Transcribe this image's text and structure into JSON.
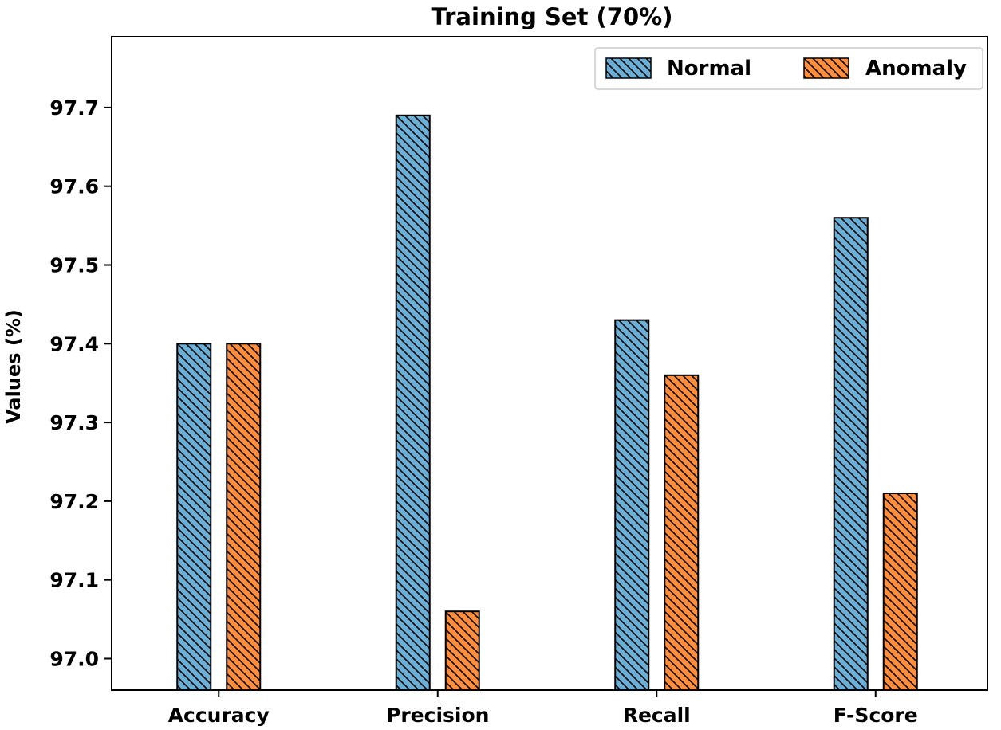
{
  "chart_data": {
    "type": "bar",
    "title": "Training Set (70%)",
    "xlabel": "",
    "ylabel": "Values (%)",
    "categories": [
      "Accuracy",
      "Precision",
      "Recall",
      "F-Score"
    ],
    "series": [
      {
        "name": "Normal",
        "color": "#6baed6",
        "hatch": "diagonal",
        "values": [
          97.4,
          97.69,
          97.43,
          97.56
        ]
      },
      {
        "name": "Anomaly",
        "color": "#fd8d3c",
        "hatch": "diagonal",
        "values": [
          97.4,
          97.06,
          97.36,
          97.21
        ]
      }
    ],
    "ylim": [
      96.96,
      97.79
    ],
    "yticks": [
      "97.0",
      "97.1",
      "97.2",
      "97.3",
      "97.4",
      "97.5",
      "97.6",
      "97.7"
    ],
    "legend_position": "top-right",
    "grid": false
  }
}
